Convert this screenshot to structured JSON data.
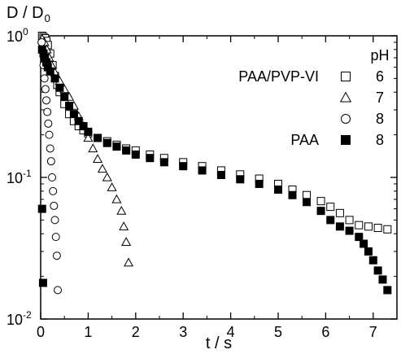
{
  "chart_data": {
    "type": "scatter",
    "title": "",
    "xlabel": "t / s",
    "ylabel": "D / D",
    "ylabel_subscript": "0",
    "xlim": [
      0,
      7.5
    ],
    "ylim": [
      0.01,
      1
    ],
    "yscale": "log",
    "grid": false,
    "x_ticks": [
      0,
      1,
      2,
      3,
      4,
      5,
      6,
      7
    ],
    "y_ticks": [
      {
        "value": 1,
        "base": "10",
        "exp": "0"
      },
      {
        "value": 0.1,
        "base": "10",
        "exp": "-1"
      },
      {
        "value": 0.01,
        "base": "10",
        "exp": "-2"
      }
    ],
    "legend": {
      "placement": "top-right",
      "header": "pH",
      "entries": [
        {
          "label": "PAA/PVP-VI",
          "ph": "6",
          "marker": "square-open"
        },
        {
          "label": "",
          "ph": "7",
          "marker": "triangle-open"
        },
        {
          "label": "",
          "ph": "8",
          "marker": "circle-open"
        },
        {
          "label": "PAA",
          "ph": "8",
          "marker": "square-filled"
        }
      ]
    },
    "series": [
      {
        "marker": "square-open",
        "x": [
          0.03,
          0.06,
          0.09,
          0.12,
          0.15,
          0.2,
          0.25,
          0.3,
          0.35,
          0.4,
          0.5,
          0.6,
          0.7,
          0.8,
          0.9,
          1.0,
          1.2,
          1.4,
          1.6,
          1.8,
          2.0,
          2.3,
          2.6,
          3.0,
          3.4,
          3.8,
          4.2,
          4.6,
          5.0,
          5.3,
          5.6,
          5.9,
          6.1,
          6.3,
          6.5,
          6.7,
          6.9,
          7.1,
          7.3
        ],
        "y": [
          1.0,
          0.98,
          0.96,
          0.92,
          0.86,
          0.75,
          0.62,
          0.52,
          0.45,
          0.4,
          0.33,
          0.28,
          0.25,
          0.23,
          0.215,
          0.205,
          0.19,
          0.18,
          0.17,
          0.16,
          0.155,
          0.145,
          0.137,
          0.128,
          0.12,
          0.112,
          0.105,
          0.098,
          0.09,
          0.082,
          0.075,
          0.068,
          0.062,
          0.056,
          0.05,
          0.046,
          0.045,
          0.044,
          0.043
        ]
      },
      {
        "marker": "triangle-open",
        "x": [
          0.03,
          0.08,
          0.13,
          0.18,
          0.23,
          0.3,
          0.4,
          0.5,
          0.6,
          0.7,
          0.8,
          0.9,
          1.0,
          1.1,
          1.2,
          1.3,
          1.4,
          1.5,
          1.6,
          1.7,
          1.75,
          1.8,
          1.85
        ],
        "y": [
          0.95,
          0.9,
          0.8,
          0.7,
          0.62,
          0.55,
          0.48,
          0.42,
          0.37,
          0.32,
          0.27,
          0.23,
          0.19,
          0.16,
          0.135,
          0.115,
          0.1,
          0.085,
          0.07,
          0.058,
          0.045,
          0.035,
          0.025
        ]
      },
      {
        "marker": "circle-open",
        "x": [
          0.02,
          0.04,
          0.06,
          0.08,
          0.1,
          0.12,
          0.14,
          0.16,
          0.18,
          0.2,
          0.22,
          0.24,
          0.26,
          0.28,
          0.3,
          0.32,
          0.34,
          0.36
        ],
        "y": [
          0.9,
          0.78,
          0.62,
          0.5,
          0.42,
          0.35,
          0.29,
          0.24,
          0.2,
          0.16,
          0.13,
          0.1,
          0.08,
          0.063,
          0.05,
          0.038,
          0.028,
          0.016
        ]
      },
      {
        "marker": "square-filled",
        "x": [
          0.03,
          0.06,
          0.09,
          0.12,
          0.15,
          0.2,
          0.3,
          0.4,
          0.5,
          0.6,
          0.7,
          0.8,
          0.9,
          1.0,
          1.2,
          1.4,
          1.6,
          1.8,
          2.0,
          2.3,
          2.6,
          3.0,
          3.4,
          3.8,
          4.2,
          4.6,
          5.0,
          5.3,
          5.6,
          5.9,
          6.1,
          6.3,
          6.5,
          6.7,
          6.8,
          6.9,
          7.0,
          7.1,
          7.2,
          7.3,
          0.03,
          0.05
        ],
        "y": [
          0.8,
          0.75,
          0.7,
          0.65,
          0.6,
          0.56,
          0.5,
          0.43,
          0.37,
          0.32,
          0.28,
          0.25,
          0.23,
          0.21,
          0.19,
          0.175,
          0.165,
          0.155,
          0.145,
          0.137,
          0.128,
          0.12,
          0.112,
          0.104,
          0.097,
          0.09,
          0.082,
          0.075,
          0.067,
          0.058,
          0.05,
          0.045,
          0.042,
          0.038,
          0.034,
          0.03,
          0.026,
          0.022,
          0.019,
          0.016,
          0.06,
          0.018
        ]
      }
    ]
  }
}
